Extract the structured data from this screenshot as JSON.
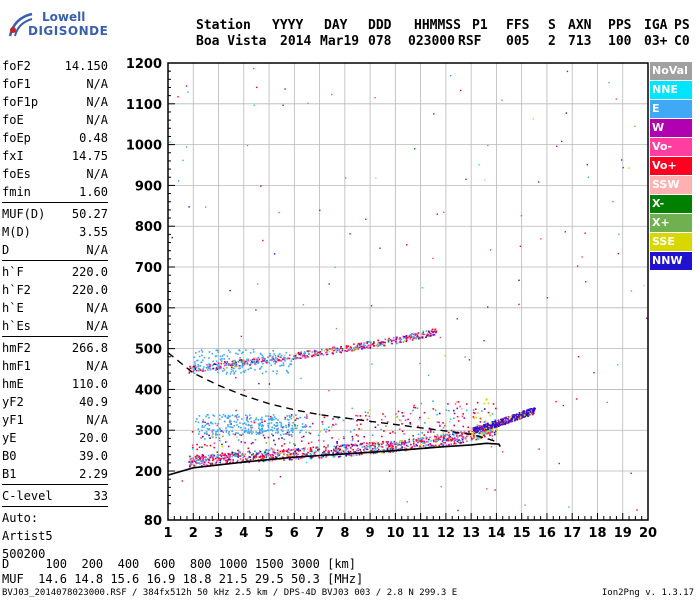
{
  "logo": {
    "line1": "Lowell",
    "line2": "DIGISONDE"
  },
  "header": {
    "labels": [
      "Station",
      "YYYY",
      "DAY",
      "DDD",
      "HHMMSS",
      "P1",
      "FFS",
      "S",
      "AXN",
      "PPS",
      "IGA",
      "PS"
    ],
    "values": [
      "Boa Vista",
      "2014",
      "Mar19",
      "078",
      "023000",
      "RSF",
      "005",
      "2",
      "713",
      "100",
      "03+",
      "C0"
    ]
  },
  "params": [
    [
      {
        "label": "foF2",
        "value": "14.150"
      },
      {
        "label": "foF1",
        "value": "N/A"
      },
      {
        "label": "foF1p",
        "value": "N/A"
      },
      {
        "label": "foE",
        "value": "N/A"
      },
      {
        "label": "foEp",
        "value": "0.48"
      },
      {
        "label": "fxI",
        "value": "14.75"
      },
      {
        "label": "foEs",
        "value": "N/A"
      },
      {
        "label": "fmin",
        "value": "1.60"
      }
    ],
    [
      {
        "label": "MUF(D)",
        "value": "50.27"
      },
      {
        "label": "M(D)",
        "value": "3.55"
      },
      {
        "label": "D",
        "value": "N/A"
      }
    ],
    [
      {
        "label": "h`F",
        "value": "220.0"
      },
      {
        "label": "h`F2",
        "value": "220.0"
      },
      {
        "label": "h`E",
        "value": "N/A"
      },
      {
        "label": "h`Es",
        "value": "N/A"
      }
    ],
    [
      {
        "label": "hmF2",
        "value": "266.8"
      },
      {
        "label": "hmF1",
        "value": "N/A"
      },
      {
        "label": "hmE",
        "value": "110.0"
      },
      {
        "label": "yF2",
        "value": "40.9"
      },
      {
        "label": "yF1",
        "value": "N/A"
      },
      {
        "label": "yE",
        "value": "20.0"
      },
      {
        "label": "B0",
        "value": "39.0"
      },
      {
        "label": "B1",
        "value": "2.29"
      }
    ],
    [
      {
        "label": "C-level",
        "value": "33"
      }
    ],
    [
      {
        "label": "Auto:",
        "value": ""
      },
      {
        "label": "Artist5",
        "value": ""
      },
      {
        "label": "500200",
        "value": ""
      }
    ]
  ],
  "legend": [
    {
      "label": "NoVal",
      "color": "#a0a0a0"
    },
    {
      "label": "NNE",
      "color": "#00e5ff"
    },
    {
      "label": "E",
      "color": "#3fa9f5"
    },
    {
      "label": "W",
      "color": "#b000b0"
    },
    {
      "label": "Vo-",
      "color": "#ff3fa0"
    },
    {
      "label": "Vo+",
      "color": "#ff0020"
    },
    {
      "label": "SSW",
      "color": "#ffb0b0"
    },
    {
      "label": "X-",
      "color": "#008000"
    },
    {
      "label": "X+",
      "color": "#70b050"
    },
    {
      "label": "SSE",
      "color": "#d8d800"
    },
    {
      "label": "NNW",
      "color": "#2010d0"
    }
  ],
  "footer": {
    "row1": "D     100  200  400  600  800 1000 1500 3000 [km]",
    "row2": "MUF  14.6 14.8 15.6 16.9 18.8 21.5 29.5 50.3 [MHz]",
    "file": "BVJ03_2014078023000.RSF / 384fx512h 50 kHz 2.5 km / DPS-4D BVJ03 003 / 2.8 N 299.3 E",
    "version": "Ion2Png v. 1.3.17"
  },
  "chart_data": {
    "type": "scatter",
    "xlabel": "",
    "ylabel": "",
    "xlim": [
      1,
      20
    ],
    "ylim": [
      80,
      1200
    ],
    "x_ticks": [
      1,
      2,
      3,
      4,
      5,
      6,
      7,
      8,
      9,
      10,
      11,
      12,
      13,
      14,
      15,
      16,
      17,
      18,
      19,
      20
    ],
    "y_ticks": [
      80,
      200,
      300,
      400,
      500,
      600,
      700,
      800,
      900,
      1000,
      1100,
      1200
    ],
    "grid": true,
    "traces": [
      {
        "name": "o-trace F2",
        "points": [
          [
            1.8,
            225
          ],
          [
            3,
            232
          ],
          [
            4,
            236
          ],
          [
            5,
            240
          ],
          [
            6,
            244
          ],
          [
            7,
            248
          ],
          [
            8,
            252
          ],
          [
            9,
            258
          ],
          [
            10,
            263
          ],
          [
            11,
            270
          ],
          [
            12,
            278
          ],
          [
            13,
            290
          ],
          [
            14,
            305
          ]
        ]
      },
      {
        "name": "x-trace F2",
        "points": [
          [
            13,
            300
          ],
          [
            14,
            318
          ],
          [
            15,
            340
          ],
          [
            15.5,
            350
          ]
        ]
      },
      {
        "name": "2F",
        "points": [
          [
            1.8,
            450
          ],
          [
            3,
            460
          ],
          [
            4,
            468
          ],
          [
            5,
            475
          ],
          [
            6,
            484
          ],
          [
            7,
            492
          ],
          [
            8,
            502
          ],
          [
            9,
            512
          ],
          [
            10,
            522
          ],
          [
            11,
            535
          ],
          [
            11.6,
            545
          ]
        ]
      }
    ],
    "profile_solid": [
      [
        1,
        190
      ],
      [
        2,
        208
      ],
      [
        3,
        215
      ],
      [
        4,
        222
      ],
      [
        5,
        228
      ],
      [
        6,
        234
      ],
      [
        7,
        238
      ],
      [
        8,
        242
      ],
      [
        9,
        246
      ],
      [
        10,
        250
      ],
      [
        11,
        255
      ],
      [
        12,
        260
      ],
      [
        13,
        264
      ],
      [
        13.6,
        268
      ],
      [
        14.1,
        266
      ],
      [
        14.15,
        260
      ]
    ],
    "profile_dashed": [
      [
        1,
        490
      ],
      [
        2,
        440
      ],
      [
        3,
        410
      ],
      [
        4,
        385
      ],
      [
        5,
        365
      ],
      [
        6,
        350
      ],
      [
        7,
        338
      ],
      [
        8,
        330
      ],
      [
        9,
        322
      ],
      [
        10,
        314
      ],
      [
        11,
        306
      ],
      [
        12,
        298
      ],
      [
        13,
        290
      ],
      [
        13.6,
        280
      ],
      [
        14.1,
        270
      ]
    ]
  }
}
